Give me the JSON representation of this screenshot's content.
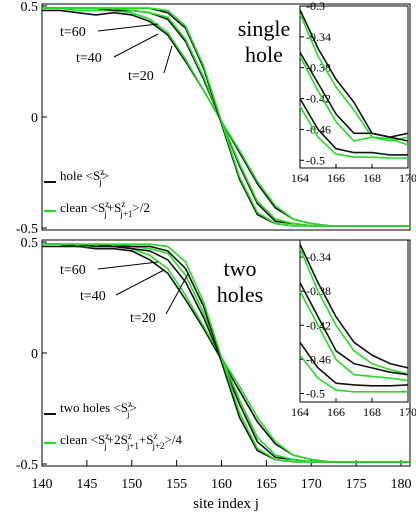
{
  "colors": {
    "hole": "#111111",
    "clean": "#22dd22"
  },
  "chart_data": [
    {
      "type": "line",
      "panel": "top",
      "title": "single hole",
      "title_lines": [
        "single",
        "hole"
      ],
      "xlim": [
        140,
        181
      ],
      "ylim": [
        -0.5,
        0.5
      ],
      "yticks": [
        -0.5,
        0,
        0.5
      ],
      "ytick_labels": [
        "-0.5",
        "0",
        "0.5"
      ],
      "x": [
        140,
        142,
        144,
        146,
        148,
        150,
        152,
        154,
        156,
        158,
        160,
        162,
        164,
        166,
        168,
        170,
        172,
        174,
        176,
        178,
        180,
        181
      ],
      "series": [
        {
          "name": "hole <S^z_j>",
          "label": "t=20",
          "values": [
            0.48,
            0.48,
            0.47,
            0.46,
            0.47,
            0.46,
            0.43,
            0.37,
            0.25,
            0.12,
            -0.02,
            -0.16,
            -0.3,
            -0.41,
            -0.46,
            -0.48,
            -0.49,
            -0.49,
            -0.49,
            -0.49,
            -0.49,
            -0.49
          ]
        },
        {
          "name": "clean <S^z_j+S^z_j+1>/2",
          "label": "t=20",
          "values": [
            0.49,
            0.49,
            0.48,
            0.48,
            0.48,
            0.47,
            0.44,
            0.38,
            0.26,
            0.12,
            -0.02,
            -0.15,
            -0.29,
            -0.4,
            -0.46,
            -0.48,
            -0.49,
            -0.49,
            -0.49,
            -0.49,
            -0.49,
            -0.49
          ]
        },
        {
          "name": "hole <S^z_j>",
          "label": "t=40",
          "values": [
            0.49,
            0.49,
            0.49,
            0.49,
            0.48,
            0.48,
            0.47,
            0.44,
            0.34,
            0.17,
            -0.02,
            -0.22,
            -0.39,
            -0.47,
            -0.48,
            -0.49,
            -0.49,
            -0.49,
            -0.49,
            -0.49,
            -0.49,
            -0.49
          ]
        },
        {
          "name": "clean <S^z_j+S^z_j+1>/2",
          "label": "t=40",
          "values": [
            0.49,
            0.49,
            0.49,
            0.49,
            0.49,
            0.48,
            0.47,
            0.45,
            0.35,
            0.18,
            -0.02,
            -0.21,
            -0.38,
            -0.46,
            -0.48,
            -0.49,
            -0.49,
            -0.49,
            -0.49,
            -0.49,
            -0.49,
            -0.49
          ]
        },
        {
          "name": "hole <S^z_j>",
          "label": "t=60",
          "values": [
            0.49,
            0.49,
            0.49,
            0.49,
            0.49,
            0.49,
            0.49,
            0.47,
            0.4,
            0.22,
            -0.03,
            -0.28,
            -0.44,
            -0.48,
            -0.49,
            -0.49,
            -0.49,
            -0.49,
            -0.49,
            -0.49,
            -0.49,
            -0.49
          ]
        },
        {
          "name": "clean <S^z_j+S^z_j+1>/2",
          "label": "t=60",
          "values": [
            0.49,
            0.49,
            0.49,
            0.49,
            0.49,
            0.49,
            0.49,
            0.48,
            0.41,
            0.23,
            -0.02,
            -0.27,
            -0.43,
            -0.48,
            -0.49,
            -0.49,
            -0.49,
            -0.49,
            -0.49,
            -0.49,
            -0.49,
            -0.49
          ]
        }
      ],
      "annotations": [
        "t=60",
        "t=40",
        "t=20"
      ],
      "legend": [
        "hole <S^z_j>",
        "clean <S^z_j+S^z_j+1>/2"
      ],
      "legend_position": "bottom-left",
      "inset": {
        "xlim": [
          164,
          170
        ],
        "ylim": [
          -0.51,
          -0.3
        ],
        "xticks": [
          164,
          166,
          168,
          170
        ],
        "xtick_labels": [
          "164",
          "166",
          "168",
          "170"
        ],
        "yticks": [
          -0.3,
          -0.34,
          -0.38,
          -0.42,
          -0.46,
          -0.5
        ],
        "ytick_labels": [
          "-0.3",
          "-0.34",
          "-0.38",
          "-0.42",
          "-0.46",
          "-0.5"
        ],
        "x": [
          164,
          165,
          166,
          167,
          168,
          169,
          170
        ],
        "series": [
          {
            "name": "hole <S^z_j>",
            "label": "t=20",
            "values": [
              -0.305,
              -0.355,
              -0.395,
              -0.425,
              -0.465,
              -0.47,
              -0.465
            ]
          },
          {
            "name": "clean <S^z_j+S^z_j+1>/2",
            "label": "t=20",
            "values": [
              -0.31,
              -0.365,
              -0.405,
              -0.435,
              -0.47,
              -0.475,
              -0.47
            ]
          },
          {
            "name": "hole <S^z_j>",
            "label": "t=40",
            "values": [
              -0.36,
              -0.4,
              -0.44,
              -0.465,
              -0.465,
              -0.47,
              -0.475
            ]
          },
          {
            "name": "clean <S^z_j+S^z_j+1>/2",
            "label": "t=40",
            "values": [
              -0.365,
              -0.41,
              -0.45,
              -0.475,
              -0.47,
              -0.472,
              -0.48
            ]
          },
          {
            "name": "hole <S^z_j>",
            "label": "t=60",
            "values": [
              -0.42,
              -0.46,
              -0.485,
              -0.49,
              -0.49,
              -0.493,
              -0.493
            ]
          },
          {
            "name": "clean <S^z_j+S^z_j+1>/2",
            "label": "t=60",
            "values": [
              -0.43,
              -0.47,
              -0.492,
              -0.496,
              -0.496,
              -0.497,
              -0.497
            ]
          }
        ]
      }
    },
    {
      "type": "line",
      "panel": "bottom",
      "title": "two holes",
      "title_lines": [
        "two",
        "holes"
      ],
      "xlim": [
        140,
        181
      ],
      "ylim": [
        -0.5,
        0.5
      ],
      "yticks": [
        -0.5,
        0,
        0.5
      ],
      "ytick_labels": [
        "-0.5",
        "0",
        "0.5"
      ],
      "xticks": [
        140,
        145,
        150,
        155,
        160,
        165,
        170,
        175,
        180
      ],
      "xtick_labels": [
        "140",
        "145",
        "150",
        "155",
        "160",
        "165",
        "170",
        "175",
        "180"
      ],
      "xlabel": "site index j",
      "x": [
        140,
        142,
        144,
        146,
        148,
        150,
        152,
        154,
        156,
        158,
        160,
        162,
        164,
        166,
        168,
        170,
        172,
        174,
        176,
        178,
        180,
        181
      ],
      "series": [
        {
          "name": "two holes <S^z_j>",
          "label": "t=20",
          "values": [
            0.48,
            0.48,
            0.48,
            0.47,
            0.47,
            0.46,
            0.42,
            0.36,
            0.24,
            0.11,
            -0.03,
            -0.17,
            -0.31,
            -0.41,
            -0.46,
            -0.48,
            -0.49,
            -0.49,
            -0.49,
            -0.49,
            -0.49,
            -0.49
          ]
        },
        {
          "name": "clean <S^z_j+2S^z_j+1+S^z_j+2>/4",
          "label": "t=20",
          "values": [
            0.49,
            0.49,
            0.48,
            0.48,
            0.48,
            0.47,
            0.44,
            0.38,
            0.26,
            0.12,
            -0.02,
            -0.15,
            -0.29,
            -0.4,
            -0.46,
            -0.48,
            -0.49,
            -0.49,
            -0.49,
            -0.49,
            -0.49,
            -0.49
          ]
        },
        {
          "name": "two holes <S^z_j>",
          "label": "t=40",
          "values": [
            0.49,
            0.49,
            0.49,
            0.48,
            0.48,
            0.47,
            0.46,
            0.42,
            0.32,
            0.16,
            -0.03,
            -0.23,
            -0.4,
            -0.47,
            -0.48,
            -0.49,
            -0.49,
            -0.49,
            -0.49,
            -0.49,
            -0.49,
            -0.49
          ]
        },
        {
          "name": "clean <S^z_j+2S^z_j+1+S^z_j+2>/4",
          "label": "t=40",
          "values": [
            0.49,
            0.49,
            0.49,
            0.49,
            0.49,
            0.48,
            0.47,
            0.45,
            0.35,
            0.18,
            -0.02,
            -0.21,
            -0.38,
            -0.46,
            -0.48,
            -0.49,
            -0.49,
            -0.49,
            -0.49,
            -0.49,
            -0.49,
            -0.49
          ]
        },
        {
          "name": "two holes <S^z_j>",
          "label": "t=60",
          "values": [
            0.49,
            0.49,
            0.48,
            0.49,
            0.48,
            0.48,
            0.48,
            0.46,
            0.38,
            0.21,
            -0.04,
            -0.29,
            -0.44,
            -0.48,
            -0.49,
            -0.49,
            -0.49,
            -0.49,
            -0.49,
            -0.49,
            -0.49,
            -0.49
          ]
        },
        {
          "name": "clean <S^z_j+2S^z_j+1+S^z_j+2>/4",
          "label": "t=60",
          "values": [
            0.49,
            0.49,
            0.49,
            0.49,
            0.49,
            0.49,
            0.49,
            0.48,
            0.41,
            0.23,
            -0.02,
            -0.27,
            -0.43,
            -0.48,
            -0.49,
            -0.49,
            -0.49,
            -0.49,
            -0.49,
            -0.49,
            -0.49,
            -0.49
          ]
        }
      ],
      "annotations": [
        "t=60",
        "t=40",
        "t=20"
      ],
      "legend": [
        "two holes <S^z_j>",
        "clean <S^z_j+2S^z_j+1+S^z_j+2>/4"
      ],
      "legend_position": "bottom-left",
      "inset": {
        "xlim": [
          164,
          170
        ],
        "ylim": [
          -0.51,
          -0.32
        ],
        "xticks": [
          164,
          166,
          168,
          170
        ],
        "xtick_labels": [
          "164",
          "166",
          "168",
          "170"
        ],
        "yticks": [
          -0.34,
          -0.38,
          -0.42,
          -0.46,
          -0.5
        ],
        "ytick_labels": [
          "-0.34",
          "-0.38",
          "-0.42",
          "-0.46",
          "-0.5"
        ],
        "x": [
          164,
          165,
          166,
          167,
          168,
          169,
          170
        ],
        "series": [
          {
            "name": "two holes <S^z_j>",
            "label": "t=20",
            "values": [
              -0.325,
              -0.37,
              -0.41,
              -0.44,
              -0.455,
              -0.465,
              -0.47
            ]
          },
          {
            "name": "clean <S^z_j+2S^z_j+1+S^z_j+2>/4",
            "label": "t=20",
            "values": [
              -0.33,
              -0.38,
              -0.42,
              -0.45,
              -0.465,
              -0.472,
              -0.477
            ]
          },
          {
            "name": "two holes <S^z_j>",
            "label": "t=40",
            "values": [
              -0.37,
              -0.41,
              -0.45,
              -0.465,
              -0.47,
              -0.475,
              -0.478
            ]
          },
          {
            "name": "clean <S^z_j+2S^z_j+1+S^z_j+2>/4",
            "label": "t=40",
            "values": [
              -0.38,
              -0.42,
              -0.46,
              -0.478,
              -0.48,
              -0.482,
              -0.485
            ]
          },
          {
            "name": "two holes <S^z_j>",
            "label": "t=60",
            "values": [
              -0.44,
              -0.47,
              -0.488,
              -0.49,
              -0.491,
              -0.491,
              -0.49
            ]
          },
          {
            "name": "clean <S^z_j+2S^z_j+1+S^z_j+2>/4",
            "label": "t=60",
            "values": [
              -0.455,
              -0.482,
              -0.496,
              -0.498,
              -0.498,
              -0.498,
              -0.498
            ]
          }
        ]
      }
    }
  ]
}
